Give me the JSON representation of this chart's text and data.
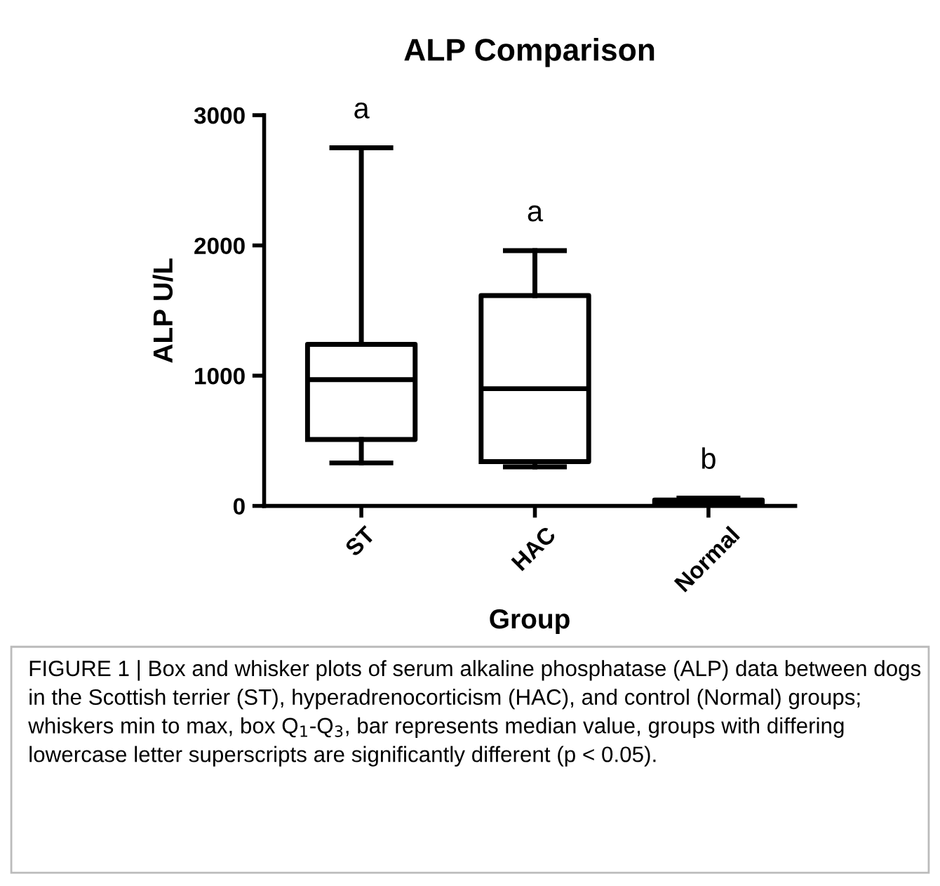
{
  "chart_data": {
    "type": "box",
    "title": "ALP Comparison",
    "xlabel": "Group",
    "ylabel": "ALP U/L",
    "categories": [
      "ST",
      "HAC",
      "Normal"
    ],
    "boxes": [
      {
        "low": 330,
        "q1": 510,
        "median": 970,
        "q3": 1240,
        "high": 2750
      },
      {
        "low": 300,
        "q1": 340,
        "median": 900,
        "q3": 1615,
        "high": 1960
      },
      {
        "low": 10,
        "q1": 20,
        "median": 30,
        "q3": 45,
        "high": 60
      }
    ],
    "color": "#000000",
    "ylim": [
      0,
      3000
    ],
    "yticks": [
      0,
      1000,
      2000,
      3000
    ],
    "grid": false,
    "legend": false,
    "annotations": [
      "a",
      "a",
      "b",
      "FIGURE 1 | Box and whisker plots of serum alkaline phosphatase (ALP) data between dogs in the Scottish terrier (ST), hyperadrenocorticism (HAC), and control (Normal) groups; whiskers min to max, box Q$_{1}$-Q$_{3}$, bar represents median value, groups with differing lowercase letter superscripts are significantly different (p < 0.05)."
    ]
  }
}
